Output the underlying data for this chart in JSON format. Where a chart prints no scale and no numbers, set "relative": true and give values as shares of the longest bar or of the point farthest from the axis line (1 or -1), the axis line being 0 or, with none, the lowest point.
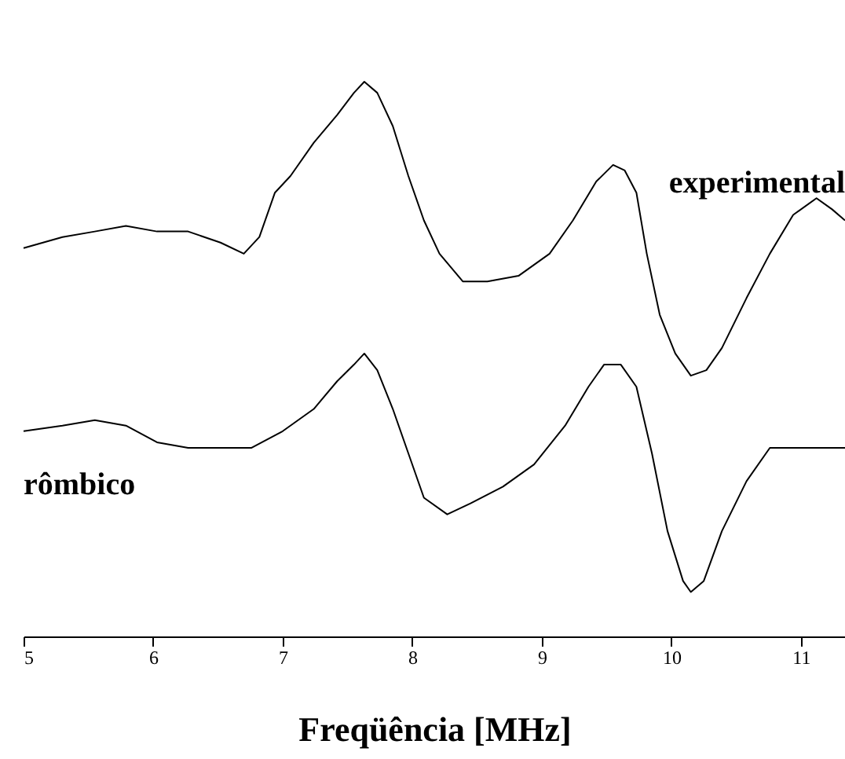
{
  "chart_data": {
    "type": "line",
    "relative": true,
    "xlabel": "Freqüência [MHz]",
    "xlim": [
      5,
      11.34
    ],
    "xticks": [
      5,
      6,
      7,
      8,
      9,
      10,
      11
    ],
    "line_style": "solid",
    "series": [
      {
        "name": "experimental",
        "color": "#000000",
        "x": [
          5.0,
          5.3,
          5.55,
          5.79,
          6.03,
          6.27,
          6.52,
          6.7,
          6.82,
          6.94,
          7.06,
          7.24,
          7.42,
          7.55,
          7.63,
          7.73,
          7.85,
          7.97,
          8.09,
          8.21,
          8.39,
          8.58,
          8.82,
          9.06,
          9.24,
          9.42,
          9.55,
          9.64,
          9.73,
          9.81,
          9.91,
          10.03,
          10.15,
          10.27,
          10.39,
          10.58,
          10.76,
          10.94,
          11.12,
          11.24,
          11.34
        ],
        "values": [
          0.7,
          0.72,
          0.73,
          0.74,
          0.73,
          0.73,
          0.71,
          0.69,
          0.72,
          0.8,
          0.83,
          0.89,
          0.94,
          0.98,
          1.0,
          0.98,
          0.92,
          0.83,
          0.75,
          0.69,
          0.64,
          0.64,
          0.65,
          0.69,
          0.75,
          0.82,
          0.85,
          0.84,
          0.8,
          0.69,
          0.58,
          0.51,
          0.47,
          0.48,
          0.52,
          0.61,
          0.69,
          0.76,
          0.79,
          0.77,
          0.75
        ]
      },
      {
        "name": "rômbico",
        "color": "#000000",
        "x": [
          5.0,
          5.3,
          5.55,
          5.79,
          6.03,
          6.27,
          6.52,
          6.76,
          7.0,
          7.24,
          7.42,
          7.55,
          7.63,
          7.73,
          7.85,
          7.97,
          8.09,
          8.27,
          8.45,
          8.7,
          8.94,
          9.18,
          9.36,
          9.48,
          9.61,
          9.73,
          9.85,
          9.97,
          10.09,
          10.15,
          10.25,
          10.39,
          10.58,
          10.76,
          11.0,
          11.34
        ],
        "values": [
          0.37,
          0.38,
          0.39,
          0.38,
          0.35,
          0.34,
          0.34,
          0.34,
          0.37,
          0.41,
          0.46,
          0.49,
          0.51,
          0.48,
          0.41,
          0.33,
          0.25,
          0.22,
          0.24,
          0.27,
          0.31,
          0.38,
          0.45,
          0.49,
          0.49,
          0.45,
          0.33,
          0.19,
          0.1,
          0.08,
          0.1,
          0.19,
          0.28,
          0.34,
          0.34,
          0.34
        ]
      }
    ]
  }
}
